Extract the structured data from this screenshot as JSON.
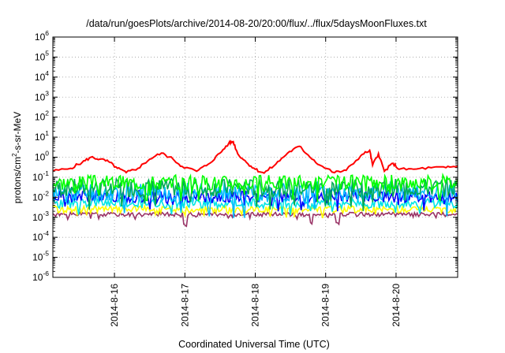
{
  "chart_data": {
    "type": "line",
    "title": "/data/run/goesPlots/archive/2014-08-20/20:00/flux/../flux/5daysMoonFluxes.txt",
    "xlabel": "Coordinated Universal Time (UTC)",
    "ylabel": "protons/cm²-s-sr-MeV",
    "ylabel_parts": {
      "pre": "protons/cm",
      "sup": "2",
      "post": "-s-sr-MeV"
    },
    "yscale": "log",
    "ylim": [
      1e-06,
      1000000.0
    ],
    "yticks": [
      {
        "base": "10",
        "exp": "-6",
        "value": 1e-06
      },
      {
        "base": "10",
        "exp": "-5",
        "value": 1e-05
      },
      {
        "base": "10",
        "exp": "-4",
        "value": 0.0001
      },
      {
        "base": "10",
        "exp": "-3",
        "value": 0.001
      },
      {
        "base": "10",
        "exp": "-2",
        "value": 0.01
      },
      {
        "base": "10",
        "exp": "-1",
        "value": 0.1
      },
      {
        "base": "10",
        "exp": "0",
        "value": 1
      },
      {
        "base": "10",
        "exp": "1",
        "value": 10.0
      },
      {
        "base": "10",
        "exp": "2",
        "value": 100.0
      },
      {
        "base": "10",
        "exp": "3",
        "value": 1000.0
      },
      {
        "base": "10",
        "exp": "4",
        "value": 10000.0
      },
      {
        "base": "10",
        "exp": "5",
        "value": 100000.0
      },
      {
        "base": "10",
        "exp": "6",
        "value": 1000000.0
      }
    ],
    "xlim": [
      "2014-08-15T03:00",
      "2014-08-20T21:00"
    ],
    "xticks": [
      {
        "label": "2014-8-16",
        "value": "2014-08-16T00:00"
      },
      {
        "label": "2014-8-17",
        "value": "2014-08-17T00:00"
      },
      {
        "label": "2014-8-18",
        "value": "2014-08-18T00:00"
      },
      {
        "label": "2014-8-19",
        "value": "2014-08-19T00:00"
      },
      {
        "label": "2014-8-20",
        "value": "2014-08-20T00:00"
      }
    ],
    "grid": true,
    "series": [
      {
        "color": "#ff0000",
        "points": [
          [
            "2014-08-15T03:00",
            0.2
          ],
          [
            "2014-08-15T09:00",
            0.28
          ],
          [
            "2014-08-15T13:00",
            0.55
          ],
          [
            "2014-08-15T16:00",
            1.0
          ],
          [
            "2014-08-15T19:00",
            0.8
          ],
          [
            "2014-08-15T22:00",
            0.6
          ],
          [
            "2014-08-16T01:00",
            0.28
          ],
          [
            "2014-08-16T04:00",
            0.17
          ],
          [
            "2014-08-16T08:00",
            0.28
          ],
          [
            "2014-08-16T12:00",
            0.8
          ],
          [
            "2014-08-16T16:00",
            1.6
          ],
          [
            "2014-08-16T20:00",
            0.8
          ],
          [
            "2014-08-16T23:00",
            0.35
          ],
          [
            "2014-08-17T04:00",
            0.2
          ],
          [
            "2014-08-17T08:00",
            0.45
          ],
          [
            "2014-08-17T12:00",
            1.6
          ],
          [
            "2014-08-17T15:00",
            5.0
          ],
          [
            "2014-08-17T16:30",
            6.0
          ],
          [
            "2014-08-17T18:00",
            1.5
          ],
          [
            "2014-08-17T21:00",
            0.55
          ],
          [
            "2014-08-18T00:00",
            0.25
          ],
          [
            "2014-08-18T03:00",
            0.16
          ],
          [
            "2014-08-18T07:00",
            0.45
          ],
          [
            "2014-08-18T11:00",
            1.6
          ],
          [
            "2014-08-18T15:00",
            3.5
          ],
          [
            "2014-08-18T18:00",
            1.3
          ],
          [
            "2014-08-18T22:00",
            0.4
          ],
          [
            "2014-08-19T03:00",
            0.17
          ],
          [
            "2014-08-19T07:00",
            0.22
          ],
          [
            "2014-08-19T12:00",
            1.2
          ],
          [
            "2014-08-19T15:00",
            2.2
          ],
          [
            "2014-08-19T16:00",
            0.4
          ],
          [
            "2014-08-19T18:00",
            1.5
          ],
          [
            "2014-08-19T20:00",
            0.2
          ],
          [
            "2014-08-19T23:00",
            0.5
          ],
          [
            "2014-08-20T01:00",
            0.25
          ],
          [
            "2014-08-20T06:00",
            0.25
          ],
          [
            "2014-08-20T12:00",
            0.3
          ],
          [
            "2014-08-20T17:00",
            0.3
          ],
          [
            "2014-08-20T21:00",
            0.35
          ]
        ]
      },
      {
        "color": "#00ff00",
        "base": 0.055,
        "amp": 0.75,
        "seed": 3
      },
      {
        "color": "#00aa55",
        "base": 0.03,
        "amp": 0.9,
        "seed": 7
      },
      {
        "color": "#00bbff",
        "base": 0.018,
        "amp": 1.0,
        "seed": 11
      },
      {
        "color": "#0000ff",
        "base": 0.011,
        "amp": 0.6,
        "seed": 19
      },
      {
        "color": "#00e5e5",
        "base": 0.005,
        "amp": 0.5,
        "seed": 23
      },
      {
        "color": "#ffff00",
        "base": 0.0025,
        "amp": 0.35,
        "seed": 29
      },
      {
        "color": "#993366",
        "base": 0.0014,
        "amp": 0.2,
        "seed": 31,
        "dips": [
          "2014-08-17T00:00",
          "2014-08-18T19:00",
          "2014-08-19T04:00"
        ]
      }
    ]
  }
}
